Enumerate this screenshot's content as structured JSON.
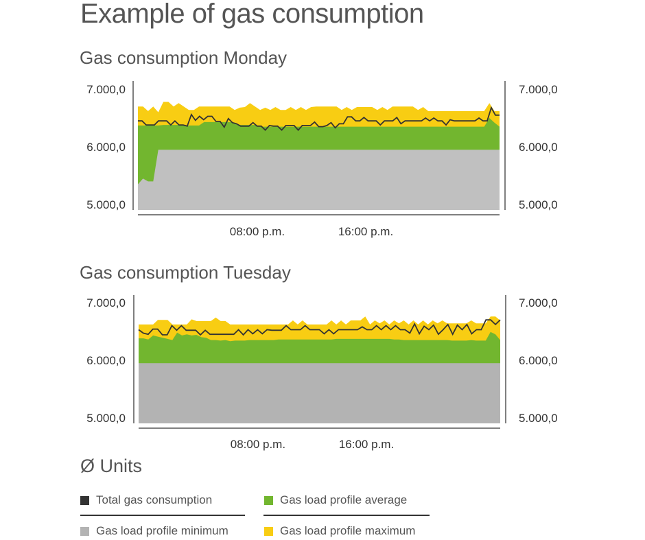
{
  "title": "Example of gas consumption",
  "colors": {
    "total": "#333333",
    "average": "#72b62f",
    "minimum": "#c0c0c0",
    "minimum_tuesday": "#b3b3b3",
    "maximum": "#f8cd13",
    "axis": "#555555"
  },
  "chart_data": [
    {
      "type": "area",
      "title": "Gas consumption Monday",
      "ylim": [
        5000,
        7000
      ],
      "y_ticks": [
        "7.000,0",
        "6.000,0",
        "5.000,0"
      ],
      "y_tick_values": [
        7000,
        6000,
        5000
      ],
      "right_y_ticks": [
        "7.000,0",
        "6.000,0",
        "5.000,0"
      ],
      "x_ticks": [
        "08:00 p.m.",
        "16:00 p.m."
      ],
      "x_tick_positions": [
        0.33,
        0.63
      ],
      "grid": false,
      "legend": "bottom",
      "series": [
        {
          "name": "Gas load profile maximum",
          "kind": "area",
          "values": [
            6700,
            6700,
            6620,
            6700,
            6600,
            6780,
            6780,
            6700,
            6760,
            6700,
            6640,
            6640,
            6700,
            6700,
            6700,
            6700,
            6700,
            6700,
            6700,
            6640,
            6680,
            6690,
            6760,
            6700,
            6640,
            6680,
            6640,
            6690,
            6640,
            6640,
            6690,
            6640,
            6690,
            6640,
            6690,
            6700,
            6700,
            6700,
            6700,
            6700,
            6640,
            6690,
            6640,
            6690,
            6690,
            6690,
            6690,
            6640,
            6690,
            6640,
            6700,
            6700,
            6700,
            6700,
            6700,
            6640,
            6690,
            6620,
            6620,
            6620,
            6620,
            6620,
            6620,
            6620,
            6620,
            6620,
            6620,
            6620,
            6620,
            6760,
            6620,
            6620
          ]
        },
        {
          "name": "Gas load profile average",
          "kind": "area",
          "values": [
            6370,
            6370,
            6370,
            6370,
            6370,
            6380,
            6380,
            6380,
            6380,
            6370,
            6370,
            6370,
            6370,
            6430,
            6430,
            6430,
            6430,
            6430,
            6430,
            6420,
            6380,
            6380,
            6380,
            6380,
            6350,
            6350,
            6350,
            6350,
            6350,
            6350,
            6350,
            6350,
            6350,
            6350,
            6350,
            6350,
            6350,
            6350,
            6350,
            6350,
            6350,
            6350,
            6350,
            6350,
            6350,
            6350,
            6350,
            6350,
            6350,
            6350,
            6350,
            6350,
            6350,
            6350,
            6350,
            6350,
            6350,
            6350,
            6350,
            6350,
            6350,
            6350,
            6350,
            6350,
            6350,
            6350,
            6350,
            6350,
            6350,
            6500,
            6420,
            6350
          ]
        },
        {
          "name": "Gas load profile minimum",
          "kind": "area",
          "values": [
            5350,
            5450,
            5400,
            5400,
            5950,
            5950,
            5950,
            5950,
            5950,
            5950,
            5950,
            5950,
            5950,
            5950,
            5950,
            5950,
            5950,
            5950,
            5950,
            5950,
            5950,
            5950,
            5950,
            5950,
            5950,
            5950,
            5950,
            5950,
            5950,
            5950,
            5950,
            5950,
            5950,
            5950,
            5950,
            5950,
            5950,
            5950,
            5950,
            5950,
            5950,
            5950,
            5950,
            5950,
            5950,
            5950,
            5950,
            5950,
            5950,
            5950,
            5950,
            5950,
            5950,
            5950,
            5950,
            5950,
            5950,
            5950,
            5950,
            5950,
            5950,
            5950,
            5950,
            5950,
            5950,
            5950,
            5950,
            5950,
            5950,
            5950,
            5950,
            5950
          ]
        },
        {
          "name": "Total gas consumption",
          "kind": "line",
          "values": [
            6450,
            6450,
            6380,
            6380,
            6380,
            6450,
            6450,
            6450,
            6380,
            6450,
            6380,
            6380,
            6360,
            6560,
            6460,
            6530,
            6470,
            6530,
            6530,
            6440,
            6440,
            6340,
            6490,
            6420,
            6400,
            6360,
            6360,
            6360,
            6420,
            6360,
            6360,
            6290,
            6370,
            6360,
            6360,
            6290,
            6370,
            6370,
            6370,
            6290,
            6370,
            6370,
            6370,
            6430,
            6350,
            6350,
            6370,
            6420,
            6330,
            6400,
            6400,
            6520,
            6520,
            6450,
            6450,
            6510,
            6450,
            6450,
            6450,
            6380,
            6450,
            6450,
            6450,
            6510,
            6400,
            6450,
            6450,
            6450,
            6450,
            6450,
            6500,
            6450,
            6500,
            6450,
            6450,
            6380,
            6470,
            6450,
            6450,
            6450,
            6450,
            6450,
            6450,
            6500,
            6450,
            6450,
            6680,
            6550,
            6550
          ]
        }
      ]
    },
    {
      "type": "area",
      "title": "Gas consumption Tuesday",
      "ylim": [
        5000,
        7000
      ],
      "y_ticks": [
        "7.000,0",
        "6.000,0",
        "5.000,0"
      ],
      "y_tick_values": [
        7000,
        6000,
        5000
      ],
      "right_y_ticks": [
        "7.000,0",
        "6.000,0",
        "5.000,0"
      ],
      "x_ticks": [
        "08:00 p.m.",
        "16:00 p.m."
      ],
      "x_tick_positions": [
        0.33,
        0.63
      ],
      "grid": false,
      "legend": "bottom",
      "series": [
        {
          "name": "Gas load profile maximum",
          "kind": "area",
          "values": [
            6620,
            6620,
            6620,
            6620,
            6700,
            6700,
            6700,
            6620,
            6620,
            6620,
            6620,
            6710,
            6680,
            6680,
            6680,
            6680,
            6740,
            6680,
            6680,
            6620,
            6620,
            6620,
            6620,
            6620,
            6620,
            6620,
            6620,
            6620,
            6620,
            6620,
            6620,
            6620,
            6690,
            6620,
            6690,
            6620,
            6620,
            6620,
            6620,
            6620,
            6690,
            6620,
            6690,
            6620,
            6690,
            6690,
            6690,
            6760,
            6620,
            6690,
            6640,
            6690,
            6620,
            6690,
            6640,
            6690,
            6620,
            6690,
            6620,
            6690,
            6620,
            6690,
            6640,
            6690,
            6640,
            6640,
            6640,
            6640,
            6640,
            6690,
            6640,
            6640,
            6640,
            6760,
            6760,
            6690
          ]
        },
        {
          "name": "Gas load profile average",
          "kind": "area",
          "values": [
            6380,
            6380,
            6360,
            6430,
            6410,
            6390,
            6370,
            6350,
            6480,
            6430,
            6450,
            6430,
            6440,
            6400,
            6390,
            6350,
            6350,
            6340,
            6350,
            6330,
            6340,
            6340,
            6340,
            6350,
            6350,
            6350,
            6350,
            6350,
            6350,
            6360,
            6360,
            6360,
            6360,
            6360,
            6360,
            6360,
            6360,
            6360,
            6360,
            6360,
            6360,
            6370,
            6370,
            6370,
            6370,
            6370,
            6370,
            6370,
            6370,
            6370,
            6370,
            6370,
            6370,
            6360,
            6360,
            6350,
            6350,
            6350,
            6350,
            6350,
            6350,
            6350,
            6350,
            6350,
            6350,
            6340,
            6340,
            6340,
            6340,
            6350,
            6340,
            6340,
            6340,
            6490,
            6450,
            6350
          ]
        },
        {
          "name": "Gas load profile minimum",
          "kind": "area",
          "values": [
            5950,
            5950,
            5950,
            5950,
            5950,
            5950,
            5950,
            5950,
            5950,
            5950,
            5950,
            5950,
            5950,
            5950,
            5950,
            5950,
            5950,
            5950,
            5950,
            5950,
            5950,
            5950,
            5950,
            5950,
            5950,
            5950,
            5950,
            5950,
            5950,
            5950,
            5950,
            5950,
            5950,
            5950,
            5950,
            5950,
            5950,
            5950,
            5950,
            5950,
            5950,
            5950,
            5950,
            5950,
            5950,
            5950,
            5950,
            5950,
            5950,
            5950,
            5950,
            5950,
            5950,
            5950,
            5950,
            5950,
            5950,
            5950,
            5950,
            5950,
            5950,
            5950,
            5950,
            5950,
            5950,
            5950,
            5950,
            5950,
            5950,
            5950,
            5950,
            5950,
            5950,
            5950,
            5950,
            5950
          ]
        },
        {
          "name": "Total gas consumption",
          "kind": "line",
          "values": [
            6530,
            6470,
            6450,
            6540,
            6540,
            6440,
            6440,
            6600,
            6520,
            6600,
            6520,
            6520,
            6520,
            6440,
            6520,
            6450,
            6450,
            6450,
            6450,
            6450,
            6450,
            6530,
            6440,
            6530,
            6460,
            6530,
            6460,
            6530,
            6520,
            6520,
            6520,
            6600,
            6530,
            6530,
            6530,
            6600,
            6530,
            6530,
            6530,
            6460,
            6530,
            6460,
            6530,
            6530,
            6530,
            6530,
            6530,
            6580,
            6530,
            6530,
            6600,
            6530,
            6600,
            6530,
            6600,
            6530,
            6530,
            6470,
            6630,
            6460,
            6590,
            6530,
            6610,
            6450,
            6530,
            6620,
            6450,
            6610,
            6530,
            6620,
            6460,
            6530,
            6530,
            6700,
            6700,
            6620,
            6700
          ]
        }
      ]
    }
  ],
  "units_title": "Ø Units",
  "legend": [
    {
      "label": "Total gas consumption",
      "color_key": "total",
      "icon": "square-swatch"
    },
    {
      "label": "Gas load profile average",
      "color_key": "average",
      "icon": "square-swatch"
    },
    {
      "label": "Gas load profile minimum",
      "color_key": "minimum_tuesday",
      "icon": "square-swatch"
    },
    {
      "label": "Gas load profile maximum",
      "color_key": "maximum",
      "icon": "square-swatch"
    }
  ]
}
